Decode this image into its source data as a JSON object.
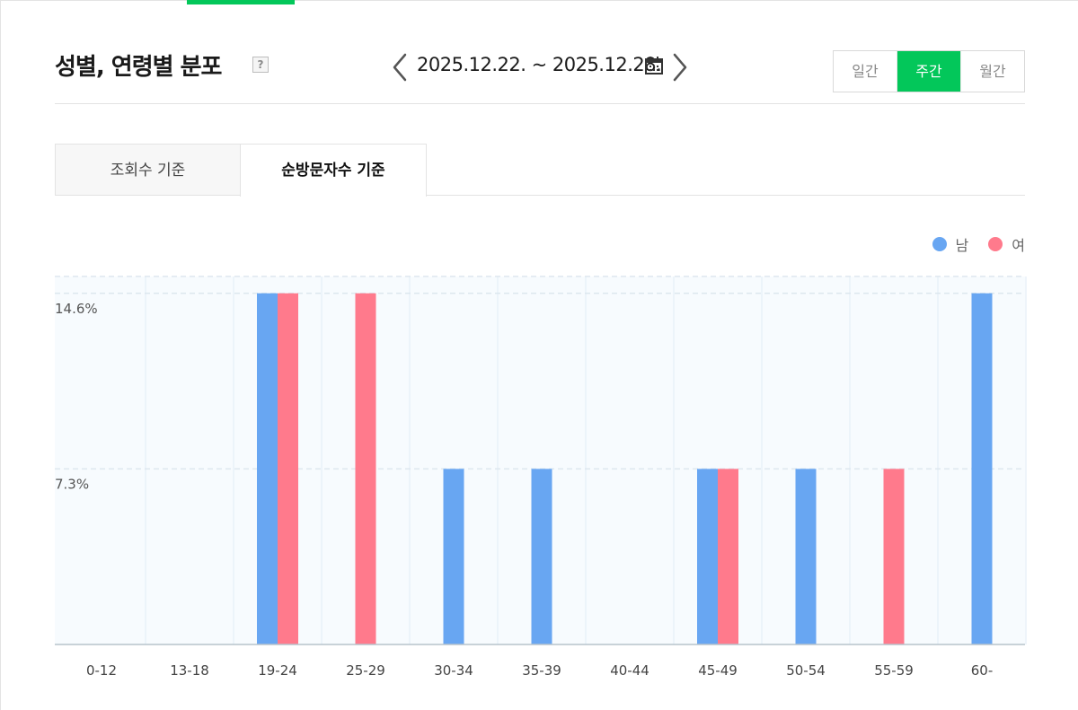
{
  "header": {
    "title": "성별, 연령별 분포",
    "help_label": "?",
    "date_range": "2025.12.22. ~ 2025.12.28."
  },
  "period_tabs": [
    {
      "label": "일간",
      "active": false
    },
    {
      "label": "주간",
      "active": true
    },
    {
      "label": "월간",
      "active": false
    }
  ],
  "metric_tabs": [
    {
      "label": "조회수 기준",
      "active": false
    },
    {
      "label": "순방문자수 기준",
      "active": true
    }
  ],
  "colors": {
    "accent": "#03c75a",
    "male": "#68a6f2",
    "female": "#ff7a8c"
  },
  "chart_data": {
    "type": "bar",
    "categories": [
      "0-12",
      "13-18",
      "19-24",
      "25-29",
      "30-34",
      "35-39",
      "40-44",
      "45-49",
      "50-54",
      "55-59",
      "60-"
    ],
    "series": [
      {
        "name": "남",
        "values": [
          0,
          0,
          14.6,
          0,
          7.3,
          7.3,
          0,
          7.3,
          7.3,
          0,
          14.6
        ]
      },
      {
        "name": "여",
        "values": [
          0,
          0,
          14.6,
          14.6,
          0,
          0,
          0,
          7.3,
          0,
          7.3,
          0
        ]
      }
    ],
    "y_ticks": [
      {
        "value": 7.3,
        "label": "7.3%"
      },
      {
        "value": 14.6,
        "label": "14.6%"
      }
    ],
    "ylim": [
      0,
      15.3
    ],
    "grid": true,
    "legend_position": "top-right"
  }
}
